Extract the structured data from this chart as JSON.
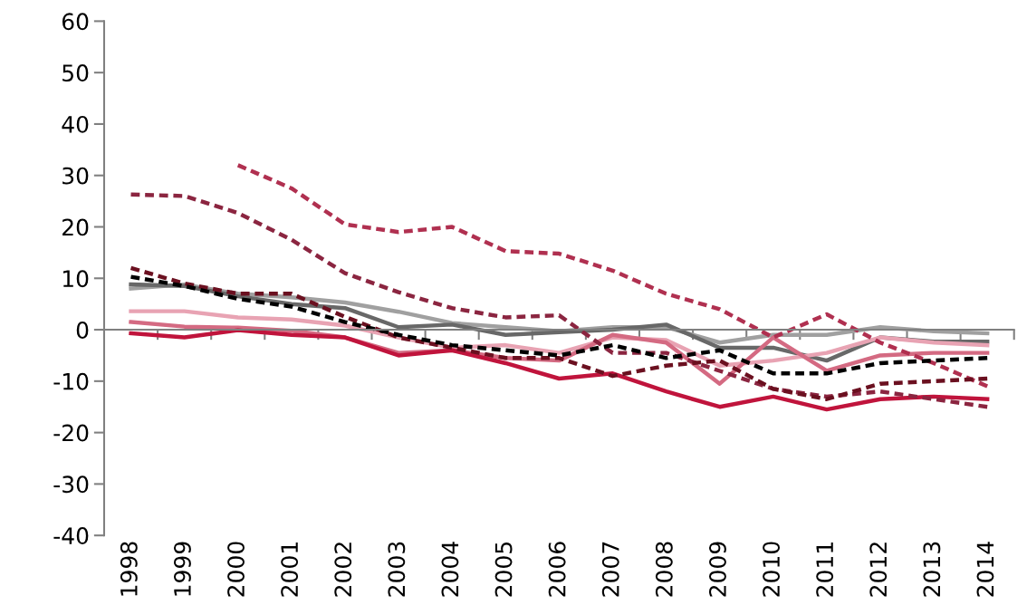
{
  "chart_data": {
    "type": "line",
    "categories": [
      "1998",
      "1999",
      "2000",
      "2001",
      "2002",
      "2003",
      "2004",
      "2005",
      "2006",
      "2007",
      "2008",
      "2009",
      "2010",
      "2011",
      "2012",
      "2013",
      "2014"
    ],
    "ylim": [
      -40,
      60
    ],
    "yticks": [
      -40,
      -30,
      -20,
      -10,
      0,
      10,
      20,
      30,
      40,
      50,
      60
    ],
    "legend": false,
    "marker": "none",
    "series": [
      {
        "color": "#a0a0a0",
        "line_style": "solid",
        "values": [
          8,
          8.8,
          7,
          6.3,
          5.3,
          3.5,
          1.3,
          0.5,
          -0.3,
          0.5,
          0.5,
          -2.5,
          -1,
          -1,
          0.5,
          -0.3,
          -0.7
        ]
      },
      {
        "color": "#686868",
        "line_style": "solid",
        "values": [
          8.8,
          8.5,
          6.5,
          5,
          4.2,
          0.5,
          1,
          -1,
          -0.5,
          0,
          1,
          -3.5,
          -3.5,
          -6,
          -1.5,
          -2.3,
          -2.3
        ]
      },
      {
        "color": "#e8a3b3",
        "line_style": "solid",
        "values": [
          3.6,
          3.6,
          2.4,
          2,
          0.8,
          -1.5,
          -3.5,
          -3,
          -4.5,
          -1.5,
          -2,
          -7,
          -6,
          -4.5,
          -1.5,
          -2.5,
          -3
        ]
      },
      {
        "color": "#d46a82",
        "line_style": "solid",
        "values": [
          1.5,
          0.6,
          0.4,
          -0.2,
          -1.5,
          -4.5,
          -4,
          -5.5,
          -6,
          -1,
          -2.5,
          -10.5,
          -1.5,
          -8,
          -5,
          -4.5,
          -4.5
        ]
      },
      {
        "color": "#c0143c",
        "line_style": "solid",
        "values": [
          -0.7,
          -1.5,
          -0.1,
          -1,
          -1.5,
          -5,
          -4,
          -6.5,
          -9.5,
          -8.5,
          -12,
          -15,
          -13,
          -15.5,
          -13.5,
          -13,
          -13.5
        ]
      },
      {
        "color": "#b03050",
        "line_style": "dashed",
        "values": [
          null,
          null,
          32,
          27.5,
          20.5,
          19,
          20,
          15.3,
          14.8,
          11.5,
          7,
          4,
          -1.5,
          3,
          -2.5,
          -6.5,
          -11
        ]
      },
      {
        "color": "#8b2540",
        "line_style": "dashed",
        "values": [
          26.3,
          26,
          22.7,
          17.5,
          11,
          7.3,
          4.2,
          2.4,
          2.8,
          -4.5,
          -4.5,
          -8,
          -11.5,
          -13,
          -12,
          -13.5,
          -15
        ]
      },
      {
        "color": "#6b1020",
        "line_style": "dashed",
        "values": [
          12,
          9,
          7,
          7,
          2.5,
          -1.5,
          -3.5,
          -5.5,
          -5.5,
          -9,
          -7,
          -6,
          -11.5,
          -13.5,
          -10.5,
          -10,
          -9.5
        ]
      },
      {
        "color": "#000000",
        "line_style": "dashed",
        "values": [
          10.3,
          8.5,
          6,
          4.5,
          1.5,
          -1,
          -3,
          -4,
          -5,
          -3,
          -5.5,
          -4,
          -8.5,
          -8.5,
          -6.5,
          -6,
          -5.5
        ]
      }
    ]
  }
}
